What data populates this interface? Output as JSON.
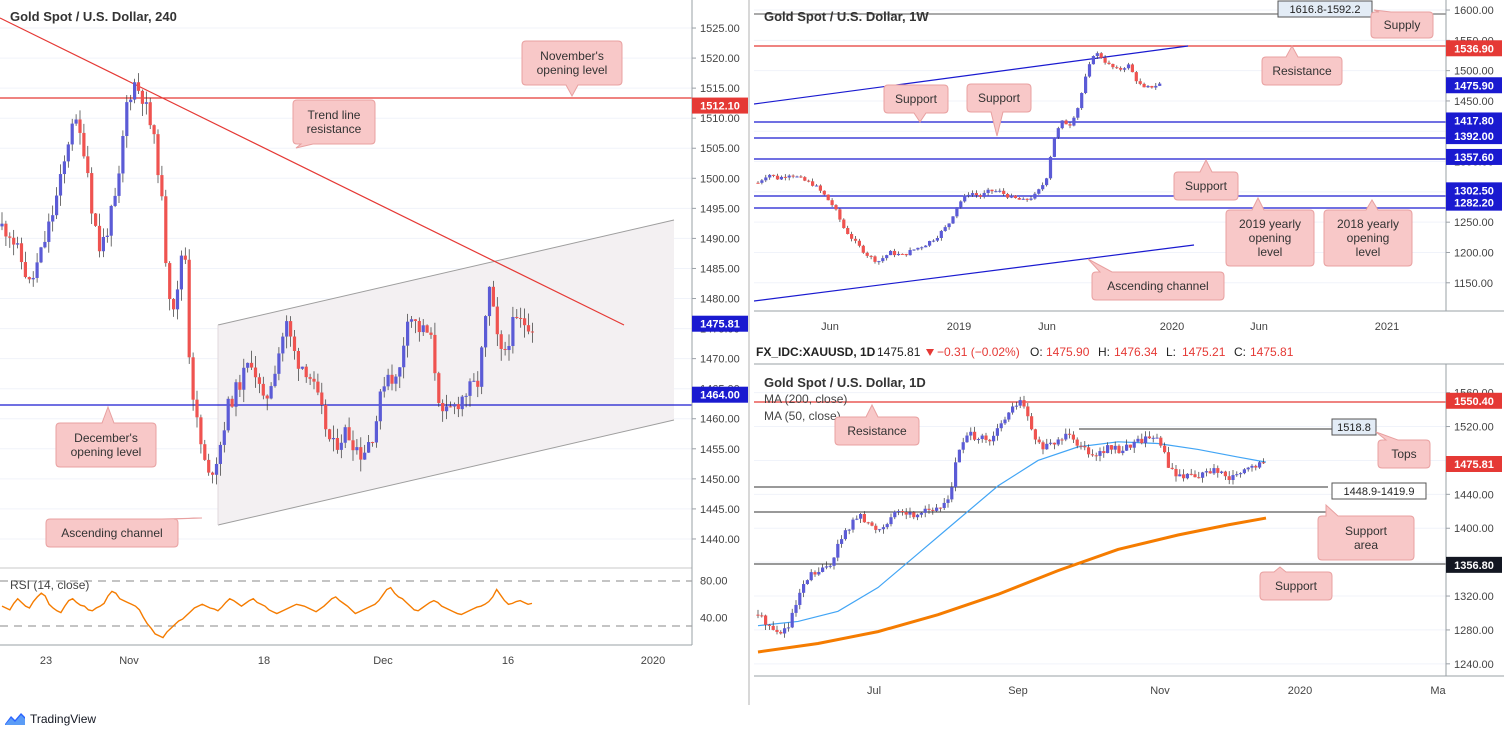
{
  "branding": {
    "name": "TradingView"
  },
  "colors": {
    "bull": "#5b5bd6",
    "bear": "#ef5350",
    "red_line": "#e53935",
    "blue_line": "#1a1ad0",
    "label_fill": "#f8c8c8",
    "label_stroke": "#e8a0a0",
    "ma50": "#42a5f5",
    "ma200": "#f57c00",
    "rsi": "#f57c00"
  },
  "chart_data": [
    {
      "id": "h4",
      "type": "candlestick",
      "title": "Gold Spot / U.S. Dollar, 240",
      "ylim": [
        1437,
        1527
      ],
      "y_ticks": [
        "1525.00",
        "1520.00",
        "1515.00",
        "1510.00",
        "1505.00",
        "1500.00",
        "1495.00",
        "1490.00",
        "1485.00",
        "1480.00",
        "1475.00",
        "1470.00",
        "1465.00",
        "1460.00",
        "1455.00",
        "1450.00",
        "1445.00",
        "1440.00"
      ],
      "x_ticks": [
        "23",
        "Nov",
        "18",
        "Dec",
        "16",
        "2020"
      ],
      "price_tags": [
        {
          "value": "1512.10",
          "color": "#e53935"
        },
        {
          "value": "1475.81",
          "color": "#1a1ad0"
        },
        {
          "value": "1464.00",
          "color": "#1a1ad0"
        }
      ],
      "path": [
        [
          0,
          1492
        ],
        [
          8,
          1491
        ],
        [
          20,
          1486
        ],
        [
          28,
          1482
        ],
        [
          40,
          1488
        ],
        [
          52,
          1495
        ],
        [
          62,
          1502
        ],
        [
          70,
          1510
        ],
        [
          76,
          1508
        ],
        [
          84,
          1504
        ],
        [
          90,
          1495
        ],
        [
          98,
          1488
        ],
        [
          106,
          1492
        ],
        [
          116,
          1498
        ],
        [
          124,
          1512
        ],
        [
          132,
          1516
        ],
        [
          140,
          1514
        ],
        [
          150,
          1508
        ],
        [
          158,
          1500
        ],
        [
          166,
          1482
        ],
        [
          174,
          1478
        ],
        [
          182,
          1492
        ],
        [
          188,
          1468
        ],
        [
          196,
          1458
        ],
        [
          206,
          1450
        ],
        [
          216,
          1454
        ],
        [
          226,
          1462
        ],
        [
          238,
          1466
        ],
        [
          250,
          1470
        ],
        [
          262,
          1462
        ],
        [
          272,
          1468
        ],
        [
          284,
          1476
        ],
        [
          294,
          1470
        ],
        [
          306,
          1468
        ],
        [
          318,
          1462
        ],
        [
          330,
          1455
        ],
        [
          344,
          1458
        ],
        [
          360,
          1454
        ],
        [
          372,
          1458
        ],
        [
          384,
          1468
        ],
        [
          396,
          1466
        ],
        [
          406,
          1478
        ],
        [
          416,
          1475
        ],
        [
          428,
          1474
        ],
        [
          440,
          1460
        ],
        [
          452,
          1462
        ],
        [
          462,
          1464
        ],
        [
          476,
          1466
        ],
        [
          488,
          1482
        ],
        [
          494,
          1474
        ],
        [
          500,
          1470
        ],
        [
          512,
          1476
        ],
        [
          526,
          1476
        ],
        [
          534,
          1475
        ]
      ],
      "annotations": [
        {
          "text": "November's\nopening level"
        },
        {
          "text": "Trend line\nresistance"
        },
        {
          "text": "December's\nopening level"
        },
        {
          "text": "Ascending channel"
        }
      ],
      "rsi": {
        "label": "RSI (14, close)",
        "y_ticks": [
          "80.00",
          "40.00"
        ],
        "ylim": [
          10,
          90
        ],
        "values": [
          52,
          50,
          48,
          55,
          60,
          56,
          52,
          50,
          57,
          62,
          66,
          63,
          54,
          50,
          47,
          45,
          52,
          58,
          60,
          56,
          53,
          52,
          48,
          47,
          50,
          52,
          55,
          63,
          68,
          66,
          60,
          58,
          56,
          54,
          52,
          48,
          40,
          33,
          28,
          22,
          20,
          18,
          24,
          28,
          32,
          36,
          38,
          42,
          46,
          50,
          52,
          54,
          52,
          50,
          49,
          47,
          51,
          56,
          60,
          58,
          55,
          52,
          55,
          58,
          60,
          56,
          54,
          52,
          48,
          46,
          44,
          46,
          48,
          50,
          52,
          54,
          53,
          52,
          50,
          48,
          46,
          49,
          52,
          56,
          60,
          62,
          58,
          55,
          52,
          48,
          44,
          46,
          48,
          50,
          52,
          54,
          58,
          64,
          70,
          72,
          66,
          62,
          60,
          56,
          52,
          48,
          47,
          50,
          53,
          56,
          58,
          56,
          52,
          50,
          48,
          46,
          44,
          43,
          45,
          47,
          49,
          51,
          52,
          54,
          57,
          62,
          70,
          64,
          58,
          54,
          55,
          57,
          58,
          56,
          54,
          55
        ]
      }
    },
    {
      "id": "w1",
      "type": "candlestick",
      "title": "Gold Spot / U.S. Dollar, 1W",
      "ylim": [
        1115,
        1605
      ],
      "y_ticks": [
        "1600.00",
        "1550.00",
        "1500.00",
        "1450.00",
        "1400.00",
        "1350.00",
        "1300.00",
        "1250.00",
        "1200.00",
        "1150.00"
      ],
      "x_ticks": [
        "Jun",
        "2019",
        "Jun",
        "2020",
        "Jun",
        "2021"
      ],
      "price_tags": [
        {
          "value": "1536.90",
          "color": "#e53935"
        },
        {
          "value": "1475.90",
          "color": "#1a1ad0"
        },
        {
          "value": "1417.80",
          "color": "#1a1ad0"
        },
        {
          "value": "1392.00",
          "color": "#1a1ad0"
        },
        {
          "value": "1357.60",
          "color": "#1a1ad0"
        },
        {
          "value": "1302.50",
          "color": "#1a1ad0"
        },
        {
          "value": "1282.20",
          "color": "#1a1ad0"
        }
      ],
      "zone_label": "1616.8-1592.2",
      "path": [
        [
          0,
          1315
        ],
        [
          10,
          1330
        ],
        [
          20,
          1322
        ],
        [
          32,
          1330
        ],
        [
          44,
          1320
        ],
        [
          56,
          1312
        ],
        [
          66,
          1295
        ],
        [
          76,
          1275
        ],
        [
          86,
          1240
        ],
        [
          98,
          1215
        ],
        [
          110,
          1195
        ],
        [
          120,
          1185
        ],
        [
          132,
          1200
        ],
        [
          144,
          1195
        ],
        [
          156,
          1205
        ],
        [
          166,
          1212
        ],
        [
          178,
          1225
        ],
        [
          190,
          1245
        ],
        [
          200,
          1280
        ],
        [
          212,
          1300
        ],
        [
          222,
          1292
        ],
        [
          232,
          1302
        ],
        [
          242,
          1300
        ],
        [
          254,
          1290
        ],
        [
          266,
          1285
        ],
        [
          278,
          1295
        ],
        [
          288,
          1320
        ],
        [
          296,
          1390
        ],
        [
          304,
          1415
        ],
        [
          312,
          1412
        ],
        [
          320,
          1440
        ],
        [
          328,
          1490
        ],
        [
          336,
          1530
        ],
        [
          342,
          1525
        ],
        [
          350,
          1510
        ],
        [
          360,
          1500
        ],
        [
          370,
          1510
        ],
        [
          380,
          1480
        ],
        [
          386,
          1470
        ],
        [
          396,
          1475
        ],
        [
          402,
          1478
        ]
      ],
      "annotations": [
        {
          "text": "Supply"
        },
        {
          "text": "Resistance"
        },
        {
          "text": "Support"
        },
        {
          "text": "Support"
        },
        {
          "text": "Support"
        },
        {
          "text": "2019 yearly\nopening\nlevel"
        },
        {
          "text": "2018 yearly\nopening\nlevel"
        },
        {
          "text": "Ascending channel"
        }
      ]
    },
    {
      "id": "d1",
      "type": "candlestick",
      "header": {
        "symbol": "FX_IDC:XAUUSD, 1D",
        "last": "1475.81",
        "change": "−0.31 (−0.02%)",
        "ohlc": [
          {
            "key": "O:",
            "value": "1475.90"
          },
          {
            "key": "H:",
            "value": "1476.34"
          },
          {
            "key": "L:",
            "value": "1475.21"
          },
          {
            "key": "C:",
            "value": "1475.81"
          }
        ]
      },
      "title": "Gold Spot / U.S. Dollar, 1D",
      "ma_labels": [
        "MA (200, close)",
        "MA (50, close)"
      ],
      "ylim": [
        1228,
        1582
      ],
      "y_ticks": [
        "1560.00",
        "1520.00",
        "1480.00",
        "1440.00",
        "1400.00",
        "1360.00",
        "1320.00",
        "1280.00",
        "1240.00"
      ],
      "x_ticks": [
        "Jul",
        "Sep",
        "Nov",
        "2020",
        "Ma"
      ],
      "price_tags": [
        {
          "value": "1550.40",
          "color": "#e53935"
        },
        {
          "value": "1475.81",
          "color": "#e53935"
        },
        {
          "value": "1356.80",
          "color": "#131722"
        }
      ],
      "tops_label": "1518.8",
      "zone_label": "1448.9-1419.9",
      "path": [
        [
          0,
          1298
        ],
        [
          8,
          1290
        ],
        [
          18,
          1276
        ],
        [
          30,
          1282
        ],
        [
          42,
          1322
        ],
        [
          52,
          1345
        ],
        [
          62,
          1348
        ],
        [
          72,
          1358
        ],
        [
          80,
          1380
        ],
        [
          90,
          1400
        ],
        [
          100,
          1415
        ],
        [
          110,
          1405
        ],
        [
          120,
          1398
        ],
        [
          132,
          1412
        ],
        [
          144,
          1420
        ],
        [
          156,
          1415
        ],
        [
          168,
          1425
        ],
        [
          180,
          1420
        ],
        [
          192,
          1440
        ],
        [
          200,
          1490
        ],
        [
          210,
          1510
        ],
        [
          220,
          1508
        ],
        [
          232,
          1500
        ],
        [
          244,
          1525
        ],
        [
          254,
          1540
        ],
        [
          262,
          1552
        ],
        [
          270,
          1530
        ],
        [
          278,
          1500
        ],
        [
          290,
          1495
        ],
        [
          302,
          1505
        ],
        [
          312,
          1515
        ],
        [
          320,
          1500
        ],
        [
          330,
          1492
        ],
        [
          340,
          1488
        ],
        [
          350,
          1495
        ],
        [
          362,
          1492
        ],
        [
          374,
          1500
        ],
        [
          384,
          1505
        ],
        [
          396,
          1510
        ],
        [
          404,
          1495
        ],
        [
          412,
          1470
        ],
        [
          422,
          1460
        ],
        [
          432,
          1465
        ],
        [
          444,
          1462
        ],
        [
          456,
          1470
        ],
        [
          468,
          1458
        ],
        [
          480,
          1462
        ],
        [
          490,
          1470
        ],
        [
          500,
          1475
        ],
        [
          508,
          1476
        ]
      ],
      "ma50": [
        [
          0,
          1285
        ],
        [
          40,
          1290
        ],
        [
          80,
          1302
        ],
        [
          120,
          1330
        ],
        [
          160,
          1370
        ],
        [
          200,
          1410
        ],
        [
          240,
          1450
        ],
        [
          280,
          1480
        ],
        [
          320,
          1496
        ],
        [
          360,
          1502
        ],
        [
          400,
          1500
        ],
        [
          440,
          1493
        ],
        [
          480,
          1484
        ],
        [
          508,
          1478
        ]
      ],
      "ma200": [
        [
          0,
          1254
        ],
        [
          60,
          1264
        ],
        [
          120,
          1278
        ],
        [
          180,
          1298
        ],
        [
          240,
          1322
        ],
        [
          300,
          1350
        ],
        [
          360,
          1375
        ],
        [
          420,
          1392
        ],
        [
          470,
          1404
        ],
        [
          508,
          1412
        ]
      ],
      "annotations": [
        {
          "text": "Resistance"
        },
        {
          "text": "Tops"
        },
        {
          "text": "Support\narea"
        },
        {
          "text": "Support"
        }
      ]
    }
  ]
}
